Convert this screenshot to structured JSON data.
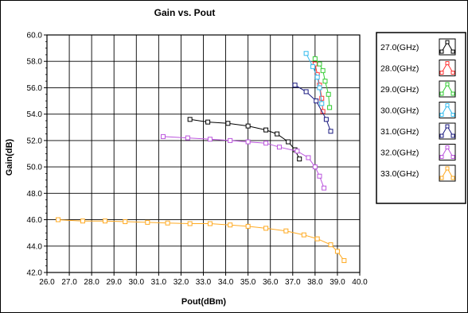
{
  "chart_data": {
    "type": "line",
    "title": "Gain vs. Pout",
    "xlabel": "Pout(dBm)",
    "ylabel": "Gain(dB)",
    "xlim": [
      26.0,
      40.0
    ],
    "ylim": [
      42.0,
      60.0
    ],
    "x_ticks": [
      "26.0",
      "27.0",
      "28.0",
      "29.0",
      "30.0",
      "31.0",
      "32.0",
      "33.0",
      "34.0",
      "35.0",
      "36.0",
      "37.0",
      "38.0",
      "39.0",
      "40.0"
    ],
    "y_ticks": [
      "42.0",
      "44.0",
      "46.0",
      "48.0",
      "50.0",
      "52.0",
      "54.0",
      "56.0",
      "58.0",
      "60.0"
    ],
    "grid": true,
    "legend_position": "right",
    "series": [
      {
        "name": "27.0(GHz)",
        "color": "#000000",
        "x": [
          32.4,
          33.2,
          34.1,
          35.0,
          35.8,
          36.3,
          36.8,
          37.1,
          37.3
        ],
        "y": [
          53.6,
          53.4,
          53.3,
          53.1,
          52.8,
          52.5,
          51.9,
          51.3,
          50.6
        ]
      },
      {
        "name": "28.0(GHz)",
        "color": "#ff3333",
        "x": [
          38.0,
          38.1,
          38.2,
          38.3,
          38.35
        ],
        "y": [
          57.8,
          57.0,
          56.2,
          55.2,
          54.2
        ]
      },
      {
        "name": "29.0(GHz)",
        "color": "#33cc33",
        "x": [
          38.0,
          38.2,
          38.35,
          38.45,
          38.6,
          38.65
        ],
        "y": [
          58.2,
          57.8,
          57.3,
          56.5,
          55.5,
          54.5
        ]
      },
      {
        "name": "30.0(GHz)",
        "color": "#33bbee",
        "x": [
          37.6,
          37.9,
          38.1,
          38.2,
          38.3
        ],
        "y": [
          58.6,
          57.6,
          56.8,
          56.0,
          54.8
        ]
      },
      {
        "name": "31.0(GHz)",
        "color": "#1a1a80",
        "x": [
          37.1,
          37.6,
          38.05,
          38.5,
          38.7
        ],
        "y": [
          56.2,
          55.7,
          55.0,
          53.6,
          52.7
        ]
      },
      {
        "name": "32.0(GHz)",
        "color": "#bb55dd",
        "x": [
          31.2,
          32.3,
          33.3,
          34.2,
          35.0,
          35.8,
          36.4,
          37.2,
          37.7,
          38.0,
          38.2,
          38.4
        ],
        "y": [
          52.3,
          52.2,
          52.1,
          52.0,
          51.9,
          51.8,
          51.5,
          51.2,
          50.7,
          50.0,
          49.3,
          48.4
        ]
      },
      {
        "name": "33.0(GHz)",
        "color": "#ffaa22",
        "x": [
          26.5,
          27.6,
          28.6,
          29.5,
          30.5,
          31.4,
          32.4,
          33.3,
          34.2,
          35.0,
          35.8,
          36.7,
          37.5,
          38.1,
          38.7,
          39.0,
          39.3
        ],
        "y": [
          46.0,
          45.9,
          45.9,
          45.85,
          45.8,
          45.75,
          45.7,
          45.7,
          45.6,
          45.5,
          45.35,
          45.15,
          44.85,
          44.55,
          44.1,
          43.6,
          42.9
        ]
      }
    ]
  }
}
